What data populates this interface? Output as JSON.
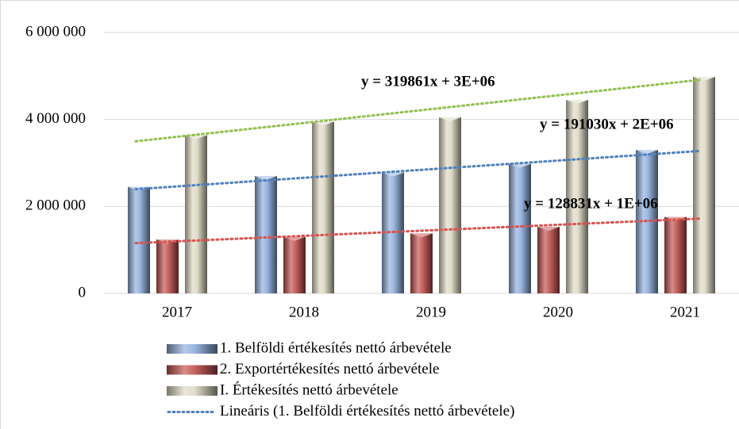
{
  "chart_data": {
    "type": "bar",
    "categories": [
      "2017",
      "2018",
      "2019",
      "2020",
      "2021"
    ],
    "series": [
      {
        "name": "1. Belföldi értékesítés nettó árbevétele",
        "color": "#8eaedc",
        "values": [
          2450000,
          2700000,
          2780000,
          2980000,
          3300000
        ]
      },
      {
        "name": "2. Exportértékesítés nettó árbevétele",
        "color": "#c0504d",
        "values": [
          1240000,
          1300000,
          1380000,
          1530000,
          1760000
        ]
      },
      {
        "name": "I. Értékesítés nettó árbevétele",
        "color": "#ddd9c3",
        "values": [
          3640000,
          3950000,
          4050000,
          4450000,
          4980000
        ]
      }
    ],
    "trendlines": [
      {
        "series": 0,
        "name": "Lineáris (1. Belföldi értékesítés nettó árbevétele)",
        "color": "#4f81bd",
        "equation": "y = 191030x + 2E+06"
      },
      {
        "series": 1,
        "color": "#d9534f",
        "equation": "y = 128831x + 1E+06"
      },
      {
        "series": 2,
        "color": "#92c050",
        "equation": "y = 319861x + 3E+06"
      }
    ],
    "ylim": [
      0,
      6000000
    ],
    "yticks": [
      {
        "value": 0,
        "label": "0"
      },
      {
        "value": 2000000,
        "label": "2 000 000"
      },
      {
        "value": 4000000,
        "label": "4 000 000"
      },
      {
        "value": 6000000,
        "label": "6 000 000"
      }
    ],
    "grid": true
  }
}
